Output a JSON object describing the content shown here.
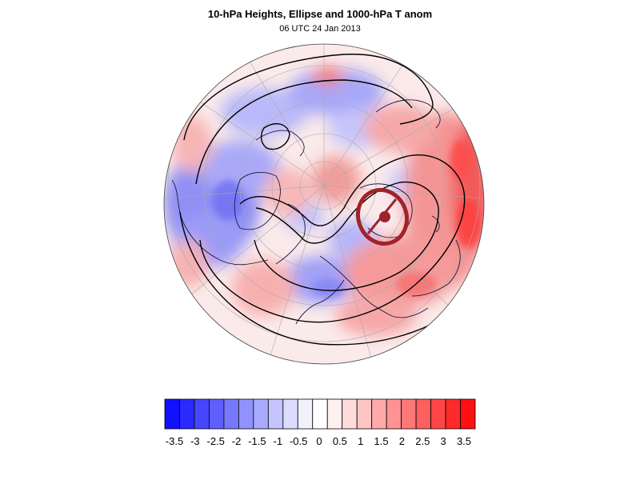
{
  "figure": {
    "title": "10-hPa Heights, Ellipse and 1000-hPa T anom",
    "subtitle": "06 UTC 24 Jan 2013"
  },
  "colorbar": {
    "colors": [
      "#1111ff",
      "#2a2aff",
      "#4646ff",
      "#5f5fff",
      "#7878ff",
      "#9292ff",
      "#aaaaff",
      "#c4c4ff",
      "#dcdcff",
      "#f2f2ff",
      "#ffffff",
      "#fff0f0",
      "#ffdcdc",
      "#ffc4c4",
      "#ffaaaa",
      "#ff9292",
      "#ff7878",
      "#ff5f5f",
      "#ff4646",
      "#ff2a2a",
      "#ff1111"
    ],
    "labels": [
      "-3.5",
      "-3",
      "-2.5",
      "-2",
      "-1.5",
      "-1",
      "-0.5",
      "0",
      "0.5",
      "1",
      "1.5",
      "2",
      "2.5",
      "3",
      "3.5"
    ]
  },
  "map_style": {
    "ellipse_color": "#a0232a",
    "contour_color": "#000000",
    "coast_color": "#1a1a40",
    "grid_color": "#999999"
  }
}
